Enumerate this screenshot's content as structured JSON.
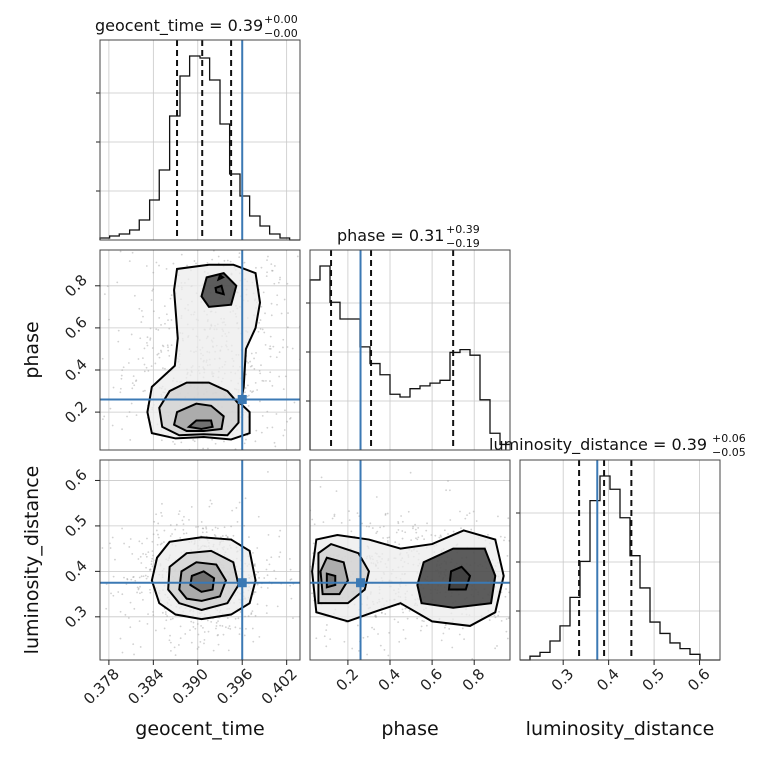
{
  "chart_data": {
    "type": "corner",
    "parameters": [
      "geocent_time",
      "phase",
      "luminosity_distance"
    ],
    "truths": {
      "geocent_time": 0.396,
      "phase": 0.26,
      "luminosity_distance": 0.375
    },
    "titles": [
      {
        "param": "geocent_time",
        "text": "geocent_time = 0.39",
        "plus": "+0.00",
        "minus": "−0.00"
      },
      {
        "param": "phase",
        "text": "phase = 0.31",
        "plus": "+0.39",
        "minus": "−0.19"
      },
      {
        "param": "luminosity_distance",
        "text": "luminosity_distance = 0.39",
        "plus": "+0.06",
        "minus": "−0.05"
      }
    ],
    "ranges": {
      "geocent_time": [
        0.3768,
        0.4038
      ],
      "phase": [
        0.02,
        0.97
      ],
      "luminosity_distance": [
        0.205,
        0.645
      ]
    },
    "ticks": {
      "geocent_time": {
        "values": [
          0.378,
          0.384,
          0.39,
          0.396,
          0.402
        ],
        "labels": [
          "0.378",
          "0.384",
          "0.390",
          "0.396",
          "0.402"
        ]
      },
      "phase": {
        "values": [
          0.2,
          0.4,
          0.6,
          0.8
        ],
        "labels": [
          "0.2",
          "0.4",
          "0.6",
          "0.8"
        ]
      },
      "luminosity_distance": {
        "values": [
          0.3,
          0.4,
          0.5,
          0.6
        ],
        "labels": [
          "0.3",
          "0.4",
          "0.5",
          "0.6"
        ]
      }
    },
    "quantiles": {
      "geocent_time": [
        0.3872,
        0.3906,
        0.3945
      ],
      "phase": [
        0.12,
        0.31,
        0.7
      ],
      "luminosity_distance": [
        0.335,
        0.39,
        0.45
      ]
    },
    "histograms": {
      "geocent_time": {
        "edges": [
          0.3768,
          0.3781,
          0.3794,
          0.3808,
          0.3821,
          0.3835,
          0.3848,
          0.3862,
          0.3876,
          0.3889,
          0.3903,
          0.3916,
          0.393,
          0.3943,
          0.3957,
          0.397,
          0.3984,
          0.3997,
          0.4011,
          0.4024,
          0.4038
        ],
        "counts": [
          1,
          2,
          3,
          5,
          10,
          20,
          35,
          62,
          82,
          92,
          91,
          80,
          58,
          33,
          22,
          12,
          7,
          3,
          1,
          0
        ]
      },
      "phase": {
        "edges": [
          0.02,
          0.0675,
          0.115,
          0.1625,
          0.21,
          0.2575,
          0.305,
          0.3525,
          0.4,
          0.4475,
          0.495,
          0.5425,
          0.59,
          0.6375,
          0.685,
          0.7325,
          0.78,
          0.8275,
          0.875,
          0.9225,
          0.97
        ],
        "counts": [
          61,
          66,
          53,
          47,
          47,
          37,
          31,
          27,
          20,
          19,
          22,
          23,
          24,
          25,
          35,
          36,
          34,
          18,
          6,
          2
        ]
      },
      "luminosity_distance": {
        "edges": [
          0.205,
          0.227,
          0.249,
          0.271,
          0.293,
          0.315,
          0.337,
          0.359,
          0.381,
          0.403,
          0.425,
          0.447,
          0.469,
          0.491,
          0.513,
          0.535,
          0.557,
          0.579,
          0.601,
          0.623,
          0.645
        ],
        "counts": [
          0,
          2,
          4,
          10,
          18,
          33,
          52,
          84,
          97,
          90,
          75,
          55,
          38,
          20,
          14,
          9,
          6,
          3,
          0,
          0
        ]
      }
    },
    "contours": {
      "phase_vs_geocent_time": [
        [
          [
            0.3908,
            0.082
          ],
          [
            0.3945,
            0.07
          ],
          [
            0.397,
            0.1
          ],
          [
            0.397,
            0.2
          ],
          [
            0.3958,
            0.24
          ],
          [
            0.3962,
            0.32
          ],
          [
            0.3965,
            0.5
          ],
          [
            0.3978,
            0.6
          ],
          [
            0.3984,
            0.72
          ],
          [
            0.3978,
            0.86
          ],
          [
            0.3948,
            0.9
          ],
          [
            0.3915,
            0.9
          ],
          [
            0.3872,
            0.88
          ],
          [
            0.3868,
            0.78
          ],
          [
            0.3873,
            0.55
          ],
          [
            0.3869,
            0.42
          ],
          [
            0.3838,
            0.32
          ],
          [
            0.3832,
            0.2
          ],
          [
            0.3838,
            0.1
          ],
          [
            0.387,
            0.075
          ]
        ],
        [
          [
            0.3908,
            0.095
          ],
          [
            0.394,
            0.09
          ],
          [
            0.3955,
            0.15
          ],
          [
            0.3955,
            0.24
          ],
          [
            0.394,
            0.3
          ],
          [
            0.3915,
            0.34
          ],
          [
            0.3885,
            0.34
          ],
          [
            0.3862,
            0.3
          ],
          [
            0.3848,
            0.22
          ],
          [
            0.3852,
            0.13
          ],
          [
            0.3875,
            0.09
          ]
        ],
        [
          [
            0.3908,
            0.11
          ],
          [
            0.3932,
            0.12
          ],
          [
            0.3935,
            0.18
          ],
          [
            0.3918,
            0.23
          ],
          [
            0.3898,
            0.24
          ],
          [
            0.3872,
            0.2
          ],
          [
            0.3868,
            0.14
          ],
          [
            0.3885,
            0.11
          ]
        ],
        [
          [
            0.3905,
            0.12
          ],
          [
            0.392,
            0.13
          ],
          [
            0.3918,
            0.16
          ],
          [
            0.3898,
            0.16
          ],
          [
            0.3888,
            0.13
          ]
        ],
        [
          [
            0.3915,
            0.7
          ],
          [
            0.3945,
            0.71
          ],
          [
            0.3952,
            0.8
          ],
          [
            0.3935,
            0.86
          ],
          [
            0.3912,
            0.84
          ],
          [
            0.3905,
            0.75
          ]
        ],
        [
          [
            0.3925,
            0.77
          ],
          [
            0.3935,
            0.76
          ],
          [
            0.3932,
            0.8
          ],
          [
            0.3924,
            0.79
          ]
        ],
        [
          [
            0.3928,
            0.83
          ],
          [
            0.3934,
            0.84
          ],
          [
            0.393,
            0.85
          ]
        ]
      ],
      "luminosity_distance_vs_geocent_time": [
        [
          [
            0.3905,
            0.295
          ],
          [
            0.3945,
            0.305
          ],
          [
            0.397,
            0.33
          ],
          [
            0.3978,
            0.38
          ],
          [
            0.397,
            0.445
          ],
          [
            0.3945,
            0.47
          ],
          [
            0.3905,
            0.475
          ],
          [
            0.3862,
            0.465
          ],
          [
            0.3845,
            0.43
          ],
          [
            0.3838,
            0.38
          ],
          [
            0.3848,
            0.33
          ],
          [
            0.387,
            0.305
          ]
        ],
        [
          [
            0.3905,
            0.315
          ],
          [
            0.394,
            0.33
          ],
          [
            0.3955,
            0.37
          ],
          [
            0.3948,
            0.42
          ],
          [
            0.3918,
            0.445
          ],
          [
            0.3885,
            0.44
          ],
          [
            0.3862,
            0.41
          ],
          [
            0.386,
            0.36
          ],
          [
            0.3875,
            0.33
          ]
        ],
        [
          [
            0.3905,
            0.335
          ],
          [
            0.393,
            0.345
          ],
          [
            0.3938,
            0.38
          ],
          [
            0.3925,
            0.415
          ],
          [
            0.3898,
            0.42
          ],
          [
            0.3878,
            0.4
          ],
          [
            0.3875,
            0.36
          ],
          [
            0.3885,
            0.34
          ]
        ],
        [
          [
            0.3905,
            0.355
          ],
          [
            0.392,
            0.36
          ],
          [
            0.3922,
            0.385
          ],
          [
            0.3908,
            0.4
          ],
          [
            0.3892,
            0.39
          ],
          [
            0.389,
            0.37
          ]
        ]
      ],
      "luminosity_distance_vs_phase": [
        [
          [
            0.05,
            0.31
          ],
          [
            0.2,
            0.29
          ],
          [
            0.32,
            0.31
          ],
          [
            0.45,
            0.33
          ],
          [
            0.6,
            0.29
          ],
          [
            0.78,
            0.28
          ],
          [
            0.9,
            0.31
          ],
          [
            0.94,
            0.39
          ],
          [
            0.9,
            0.47
          ],
          [
            0.75,
            0.49
          ],
          [
            0.6,
            0.46
          ],
          [
            0.45,
            0.45
          ],
          [
            0.3,
            0.47
          ],
          [
            0.15,
            0.48
          ],
          [
            0.05,
            0.47
          ],
          [
            0.03,
            0.4
          ]
        ],
        [
          [
            0.06,
            0.33
          ],
          [
            0.2,
            0.33
          ],
          [
            0.28,
            0.36
          ],
          [
            0.3,
            0.4
          ],
          [
            0.25,
            0.44
          ],
          [
            0.12,
            0.46
          ],
          [
            0.06,
            0.44
          ]
        ],
        [
          [
            0.08,
            0.35
          ],
          [
            0.16,
            0.35
          ],
          [
            0.2,
            0.38
          ],
          [
            0.18,
            0.42
          ],
          [
            0.1,
            0.43
          ],
          [
            0.07,
            0.4
          ]
        ],
        [
          [
            0.1,
            0.365
          ],
          [
            0.14,
            0.37
          ],
          [
            0.14,
            0.39
          ],
          [
            0.1,
            0.395
          ]
        ],
        [
          [
            0.55,
            0.33
          ],
          [
            0.7,
            0.32
          ],
          [
            0.88,
            0.33
          ],
          [
            0.9,
            0.39
          ],
          [
            0.85,
            0.45
          ],
          [
            0.7,
            0.45
          ],
          [
            0.56,
            0.42
          ],
          [
            0.53,
            0.37
          ]
        ],
        [
          [
            0.68,
            0.36
          ],
          [
            0.76,
            0.36
          ],
          [
            0.78,
            0.39
          ],
          [
            0.74,
            0.41
          ],
          [
            0.69,
            0.4
          ]
        ]
      ]
    },
    "xlabels": [
      "geocent_time",
      "phase",
      "luminosity_distance"
    ],
    "ylabels": [
      "phase",
      "luminosity_distance"
    ]
  }
}
